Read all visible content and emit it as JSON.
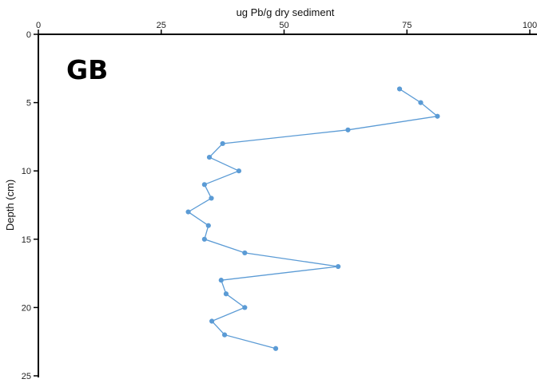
{
  "chart_data": {
    "type": "line",
    "panel_label": "GB",
    "xlabel": "ug Pb/g dry sediment",
    "ylabel": "Depth (cm)",
    "xlim": [
      0,
      100
    ],
    "ylim": [
      0,
      25
    ],
    "y_inverted": true,
    "x_axis_position": "top",
    "x_ticks": [
      0,
      25,
      50,
      75,
      100
    ],
    "x_tick_labels": [
      "0",
      "25",
      "50",
      "75",
      "100"
    ],
    "y_ticks": [
      0,
      5,
      10,
      15,
      20,
      25
    ],
    "y_tick_labels": [
      "0",
      "5",
      "10",
      "15",
      "20",
      "25"
    ],
    "grid": false,
    "series": [
      {
        "color": "#5b9bd5",
        "points": [
          {
            "x": 73.5,
            "y": 4
          },
          {
            "x": 77.8,
            "y": 5
          },
          {
            "x": 81.2,
            "y": 6
          },
          {
            "x": 63,
            "y": 7
          },
          {
            "x": 37.5,
            "y": 8
          },
          {
            "x": 34.8,
            "y": 9
          },
          {
            "x": 40.8,
            "y": 10
          },
          {
            "x": 33.8,
            "y": 11
          },
          {
            "x": 35.2,
            "y": 12
          },
          {
            "x": 30.5,
            "y": 13
          },
          {
            "x": 34.6,
            "y": 14
          },
          {
            "x": 33.8,
            "y": 15
          },
          {
            "x": 42,
            "y": 16
          },
          {
            "x": 61,
            "y": 17
          },
          {
            "x": 37.2,
            "y": 18
          },
          {
            "x": 38.2,
            "y": 19
          },
          {
            "x": 42,
            "y": 20
          },
          {
            "x": 35.3,
            "y": 21
          },
          {
            "x": 37.9,
            "y": 22
          },
          {
            "x": 48.3,
            "y": 23
          }
        ]
      }
    ]
  }
}
